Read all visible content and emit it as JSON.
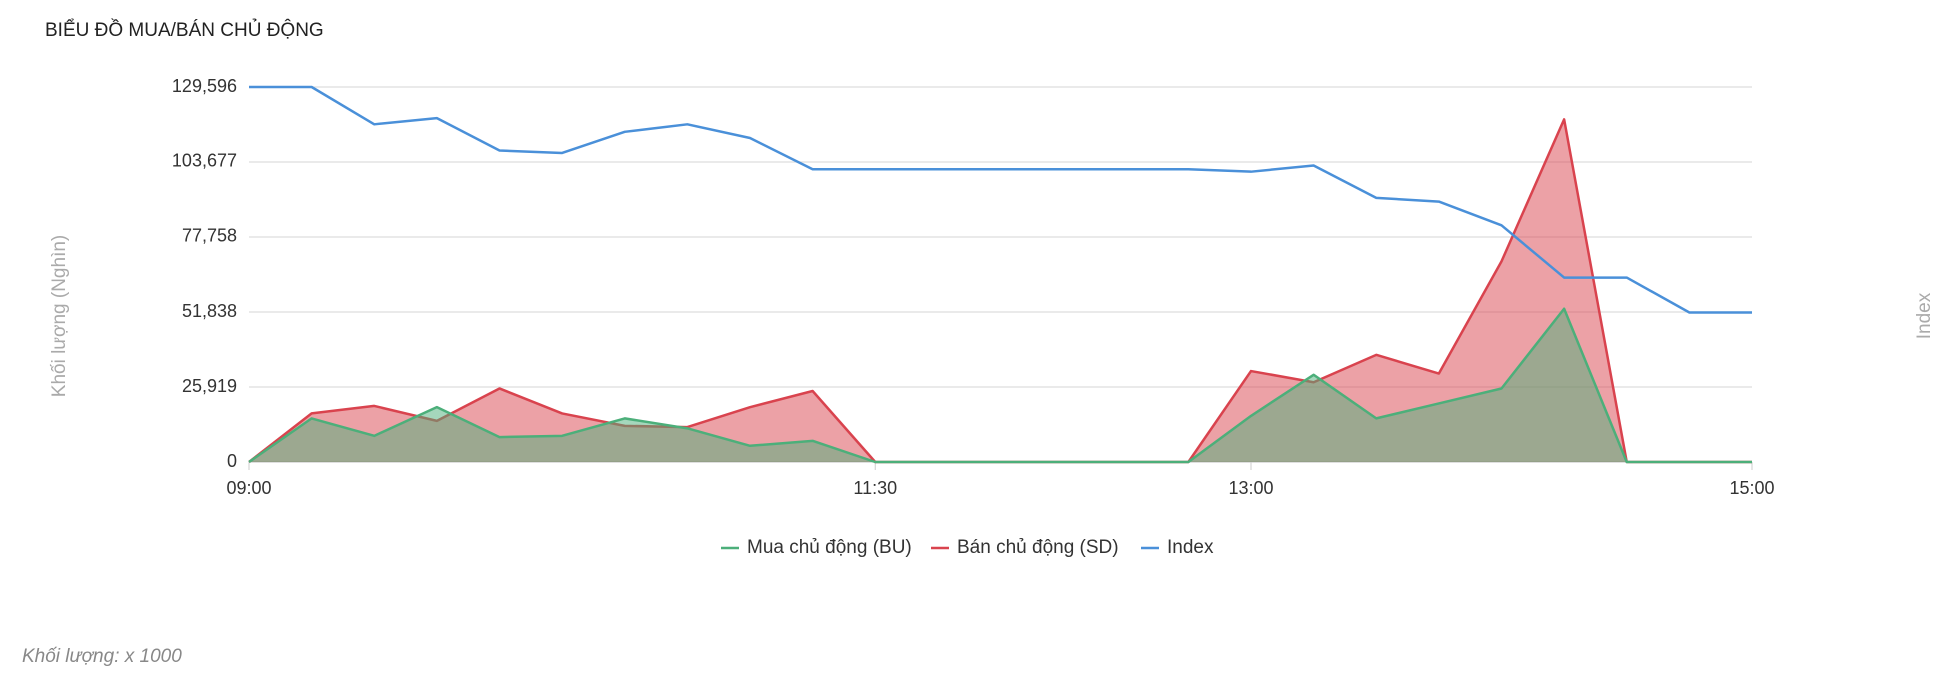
{
  "chart_data": {
    "type": "area",
    "title": "BIỂU ĐỒ MUA/BÁN CHỦ ĐỘNG",
    "y_label": "Khối lượng (Nghìn)",
    "y2_label": "Index",
    "footnote": "Khối lượng: x 1000",
    "categories": [
      "09:00",
      null,
      null,
      null,
      null,
      null,
      null,
      null,
      null,
      null,
      "11:30",
      null,
      null,
      null,
      null,
      null,
      "13:00",
      null,
      null,
      null,
      null,
      null,
      null,
      null,
      "15:00"
    ],
    "ylim": [
      0,
      129596
    ],
    "yticks": [
      0,
      {
        "value": 25919,
        "label": "25,919"
      },
      {
        "value": 51838,
        "label": "51,838"
      },
      {
        "value": 77758,
        "label": "77,758"
      },
      {
        "value": 103677,
        "label": "103,677"
      },
      {
        "value": 129596,
        "label": "129,596"
      }
    ],
    "grid": true,
    "legend": "bottom",
    "series": [
      {
        "name": "Mua chủ động (BU)",
        "color": "#4caf7a",
        "values": [
          0,
          15070,
          9040,
          18950,
          8610,
          9040,
          15070,
          11630,
          5600,
          7320,
          0,
          0,
          0,
          0,
          0,
          0,
          15930,
          30140,
          15070,
          20240,
          25410,
          52960,
          0,
          0,
          0
        ]
      },
      {
        "name": "Bán chủ động (SD)",
        "color": "#d9434e",
        "values": [
          0,
          16790,
          19380,
          14210,
          25410,
          16790,
          12490,
          12060,
          18950,
          24540,
          0,
          0,
          0,
          0,
          0,
          0,
          31430,
          27560,
          37030,
          30570,
          69330,
          118420,
          0,
          0,
          0
        ]
      },
      {
        "name": "Index",
        "color": "#4a90d9",
        "line_only": true,
        "values": [
          129596,
          129596,
          116700,
          118850,
          107650,
          106790,
          114110,
          116700,
          111960,
          101190,
          101190,
          101190,
          101190,
          101190,
          101190,
          101190,
          100330,
          102480,
          91290,
          90000,
          81810,
          63730,
          63730,
          51670,
          51670
        ]
      }
    ]
  }
}
